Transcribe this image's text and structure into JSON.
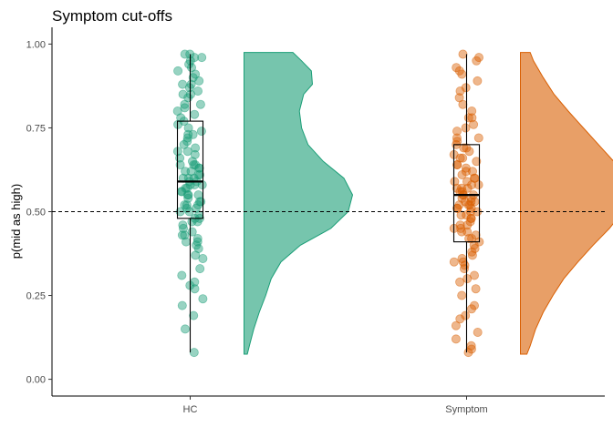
{
  "chart_data": {
    "type": "raincloud",
    "title": "Symptom cut-offs",
    "ylabel": "p(mid as high)",
    "xlabel": "",
    "ylim": [
      -0.05,
      1.05
    ],
    "y_ticks": [
      "0.00",
      "0.25",
      "0.50",
      "0.75",
      "1.00"
    ],
    "y_tick_values": [
      0,
      0.25,
      0.5,
      0.75,
      1.0
    ],
    "categories": [
      "HC",
      "Symptom"
    ],
    "reference_line": 0.5,
    "grid": false,
    "series": [
      {
        "category": "HC",
        "color": "#1b9e77",
        "box": {
          "min": 0.08,
          "q1": 0.48,
          "median": 0.59,
          "q3": 0.77,
          "max": 0.97
        },
        "density": [
          [
            0.075,
            0.03
          ],
          [
            0.1,
            0.05
          ],
          [
            0.15,
            0.09
          ],
          [
            0.2,
            0.14
          ],
          [
            0.25,
            0.2
          ],
          [
            0.3,
            0.25
          ],
          [
            0.35,
            0.34
          ],
          [
            0.4,
            0.52
          ],
          [
            0.45,
            0.8
          ],
          [
            0.5,
            0.96
          ],
          [
            0.55,
            1.0
          ],
          [
            0.6,
            0.92
          ],
          [
            0.65,
            0.73
          ],
          [
            0.7,
            0.59
          ],
          [
            0.75,
            0.53
          ],
          [
            0.8,
            0.51
          ],
          [
            0.85,
            0.55
          ],
          [
            0.88,
            0.63
          ],
          [
            0.92,
            0.62
          ],
          [
            0.95,
            0.53
          ],
          [
            0.975,
            0.45
          ]
        ],
        "points": [
          0.08,
          0.15,
          0.19,
          0.24,
          0.27,
          0.29,
          0.31,
          0.33,
          0.37,
          0.39,
          0.4,
          0.41,
          0.42,
          0.43,
          0.44,
          0.45,
          0.46,
          0.47,
          0.48,
          0.49,
          0.5,
          0.5,
          0.51,
          0.51,
          0.52,
          0.52,
          0.53,
          0.53,
          0.54,
          0.55,
          0.55,
          0.56,
          0.56,
          0.57,
          0.57,
          0.58,
          0.58,
          0.59,
          0.59,
          0.6,
          0.6,
          0.61,
          0.61,
          0.62,
          0.62,
          0.63,
          0.64,
          0.64,
          0.65,
          0.66,
          0.67,
          0.68,
          0.69,
          0.7,
          0.71,
          0.72,
          0.73,
          0.74,
          0.75,
          0.76,
          0.77,
          0.78,
          0.79,
          0.8,
          0.81,
          0.82,
          0.84,
          0.85,
          0.86,
          0.87,
          0.88,
          0.89,
          0.9,
          0.91,
          0.92,
          0.93,
          0.94,
          0.95,
          0.96,
          0.97,
          0.97,
          0.96,
          0.88,
          0.85,
          0.82,
          0.73,
          0.68,
          0.64,
          0.6,
          0.55,
          0.52,
          0.48,
          0.43,
          0.41,
          0.36,
          0.28,
          0.22,
          0.47,
          0.58,
          0.63
        ]
      },
      {
        "category": "Symptom",
        "color": "#d95f02",
        "box": {
          "min": 0.08,
          "q1": 0.41,
          "median": 0.55,
          "q3": 0.7,
          "max": 0.97
        },
        "density": [
          [
            0.075,
            0.06
          ],
          [
            0.1,
            0.09
          ],
          [
            0.15,
            0.14
          ],
          [
            0.2,
            0.21
          ],
          [
            0.25,
            0.3
          ],
          [
            0.3,
            0.4
          ],
          [
            0.35,
            0.53
          ],
          [
            0.4,
            0.67
          ],
          [
            0.45,
            0.82
          ],
          [
            0.5,
            0.94
          ],
          [
            0.55,
            1.0
          ],
          [
            0.6,
            0.96
          ],
          [
            0.65,
            0.86
          ],
          [
            0.7,
            0.72
          ],
          [
            0.75,
            0.58
          ],
          [
            0.8,
            0.44
          ],
          [
            0.85,
            0.31
          ],
          [
            0.9,
            0.21
          ],
          [
            0.95,
            0.12
          ],
          [
            0.975,
            0.09
          ]
        ],
        "points": [
          0.08,
          0.09,
          0.12,
          0.14,
          0.16,
          0.18,
          0.19,
          0.22,
          0.25,
          0.27,
          0.29,
          0.31,
          0.33,
          0.34,
          0.35,
          0.36,
          0.38,
          0.39,
          0.4,
          0.41,
          0.42,
          0.43,
          0.44,
          0.45,
          0.46,
          0.46,
          0.47,
          0.48,
          0.48,
          0.49,
          0.5,
          0.5,
          0.51,
          0.51,
          0.52,
          0.52,
          0.53,
          0.53,
          0.54,
          0.54,
          0.55,
          0.55,
          0.56,
          0.56,
          0.57,
          0.57,
          0.58,
          0.58,
          0.59,
          0.6,
          0.6,
          0.61,
          0.62,
          0.63,
          0.64,
          0.65,
          0.66,
          0.67,
          0.68,
          0.69,
          0.7,
          0.71,
          0.72,
          0.74,
          0.76,
          0.78,
          0.8,
          0.82,
          0.84,
          0.87,
          0.89,
          0.91,
          0.93,
          0.95,
          0.97,
          0.96,
          0.92,
          0.86,
          0.78,
          0.72,
          0.66,
          0.62,
          0.57,
          0.53,
          0.49,
          0.44,
          0.37,
          0.3,
          0.21,
          0.1,
          0.45,
          0.51,
          0.55,
          0.59,
          0.64,
          0.69,
          0.75,
          0.35,
          0.42,
          0.52
        ]
      }
    ]
  }
}
